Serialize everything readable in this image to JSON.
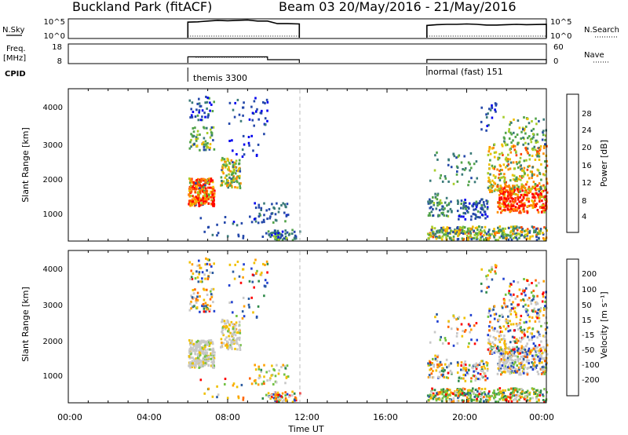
{
  "header": {
    "title": "Buckland Park (fitACF)",
    "subtitle": "Beam 03  20/May/2016 - 21/May/2016"
  },
  "side_labels": {
    "nsky": "N.Sky",
    "freq_1": "Freq.",
    "freq_2": "[MHz]",
    "cpid": "CPID",
    "nsearch": "N.Search",
    "nave": "Nave"
  },
  "chart_data": [
    {
      "type": "line",
      "name": "noise-panel",
      "y_ticks_left": [
        "10^5",
        "10^0"
      ],
      "y_ticks_right": [
        "10^5",
        "10^0"
      ],
      "segments": [
        {
          "x": [
            6.0,
            6.5,
            7.0,
            7.5,
            8.0,
            8.5,
            9.0,
            9.5,
            10.0,
            10.5,
            11.0,
            11.6
          ],
          "y": [
            4.3,
            4.4,
            4.6,
            4.8,
            4.7,
            4.8,
            4.9,
            4.6,
            4.6,
            3.9,
            3.9,
            3.8
          ]
        },
        {
          "x": [
            18.0,
            18.5,
            19.0,
            19.5,
            20.0,
            20.5,
            21.0,
            21.5,
            22.0,
            22.5,
            23.0,
            24.0
          ],
          "y": [
            3.4,
            3.6,
            3.7,
            3.7,
            3.8,
            3.7,
            3.5,
            3.5,
            3.6,
            3.7,
            3.6,
            3.7
          ]
        }
      ]
    },
    {
      "type": "line",
      "name": "frequency-panel",
      "y_ticks_left": [
        "18",
        "8"
      ],
      "y_ticks_right": [
        "60",
        "0"
      ],
      "freq_segments": [
        {
          "x": [
            6.0,
            10.0,
            10.0,
            11.6
          ],
          "y": [
            12.2,
            12.2,
            10.2,
            10.2
          ]
        },
        {
          "x": [
            18.0,
            24.0
          ],
          "y": [
            10.3,
            10.3
          ]
        }
      ],
      "cpid_labels": [
        {
          "x": 6.0,
          "text": "themis 3300"
        },
        {
          "x": 18.0,
          "text": "normal (fast) 151"
        }
      ]
    },
    {
      "type": "heatmap",
      "name": "power-panel",
      "ylabel": "Slant Range [km]",
      "y_ticks": [
        "1000",
        "2000",
        "3000",
        "4000"
      ],
      "ylim": [
        200,
        4600
      ],
      "colorbar_label": "Power [dB]",
      "colorbar_ticks": [
        "4",
        "8",
        "12",
        "16",
        "20",
        "24",
        "28"
      ],
      "colors": [
        "#0000ee",
        "#2448aa",
        "#3a7a78",
        "#52a34a",
        "#a6cc2a",
        "#f0c000",
        "#ff8c00",
        "#ff4400",
        "#ff0000"
      ]
    },
    {
      "type": "heatmap",
      "name": "velocity-panel",
      "ylabel": "Slant Range [km]",
      "y_ticks": [
        "1000",
        "2000",
        "3000",
        "4000"
      ],
      "ylim": [
        200,
        4600
      ],
      "colorbar_label": "Velocity [m s⁻¹]",
      "colorbar_ticks": [
        "-200",
        "-100",
        "-50",
        "-15",
        "15",
        "50",
        "100",
        "200"
      ],
      "colors": [
        "#ff0000",
        "#ff6600",
        "#ff9f00",
        "#f0c000",
        "#c8c8c8",
        "#70c040",
        "#2f8a4a",
        "#2a5aa0",
        "#2040d0"
      ]
    }
  ],
  "xaxis": {
    "label": "Time UT",
    "ticks": [
      "00:00",
      "04:00",
      "08:00",
      "12:00",
      "16:00",
      "20:00",
      "00:00"
    ]
  }
}
